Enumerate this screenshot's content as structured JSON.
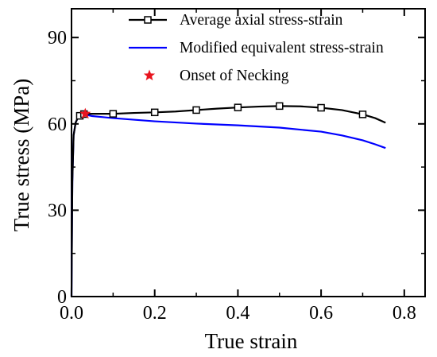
{
  "chart_data": {
    "type": "line",
    "xlabel": "True strain",
    "ylabel": "True stress (MPa)",
    "xlim": [
      0,
      0.85
    ],
    "ylim": [
      0,
      100
    ],
    "x_ticks": [
      0.0,
      0.2,
      0.4,
      0.6,
      0.8
    ],
    "x_tick_labels": [
      "0.0",
      "0.2",
      "0.4",
      "0.6",
      "0.8"
    ],
    "y_ticks": [
      0,
      30,
      60,
      90
    ],
    "y_tick_labels": [
      "0",
      "30",
      "60",
      "90"
    ],
    "grid": false,
    "legend_position": "top-right",
    "series": [
      {
        "name": "Average axial stress-strain",
        "color": "#000000",
        "marker": "open-square",
        "x": [
          0,
          0.002,
          0.005,
          0.01,
          0.015,
          0.02,
          0.03,
          0.05,
          0.1,
          0.15,
          0.2,
          0.25,
          0.3,
          0.35,
          0.4,
          0.45,
          0.5,
          0.55,
          0.6,
          0.65,
          0.7,
          0.73,
          0.755
        ],
        "y": [
          0,
          40,
          56,
          60.5,
          62,
          62.8,
          63.4,
          63.5,
          63.5,
          63.8,
          64.0,
          64.3,
          64.8,
          65.3,
          65.7,
          66.0,
          66.2,
          66.1,
          65.6,
          64.8,
          63.3,
          62.0,
          60.4
        ],
        "marker_x": [
          0.02,
          0.03,
          0.1,
          0.2,
          0.3,
          0.4,
          0.5,
          0.6,
          0.7
        ]
      },
      {
        "name": "Modified equivalent stress-strain",
        "color": "#0000ff",
        "marker": "none",
        "x": [
          0,
          0.002,
          0.005,
          0.01,
          0.015,
          0.02,
          0.03,
          0.05,
          0.1,
          0.2,
          0.3,
          0.4,
          0.5,
          0.6,
          0.65,
          0.7,
          0.73,
          0.755
        ],
        "y": [
          0,
          40,
          56,
          60.5,
          62,
          62.8,
          63.3,
          62.7,
          62.0,
          60.9,
          60.1,
          59.5,
          58.7,
          57.3,
          56.0,
          54.3,
          52.9,
          51.6
        ]
      },
      {
        "name": "Onset of Necking",
        "color": "#e8141e",
        "marker": "star",
        "x": [
          0.033
        ],
        "y": [
          63.5
        ]
      }
    ]
  }
}
